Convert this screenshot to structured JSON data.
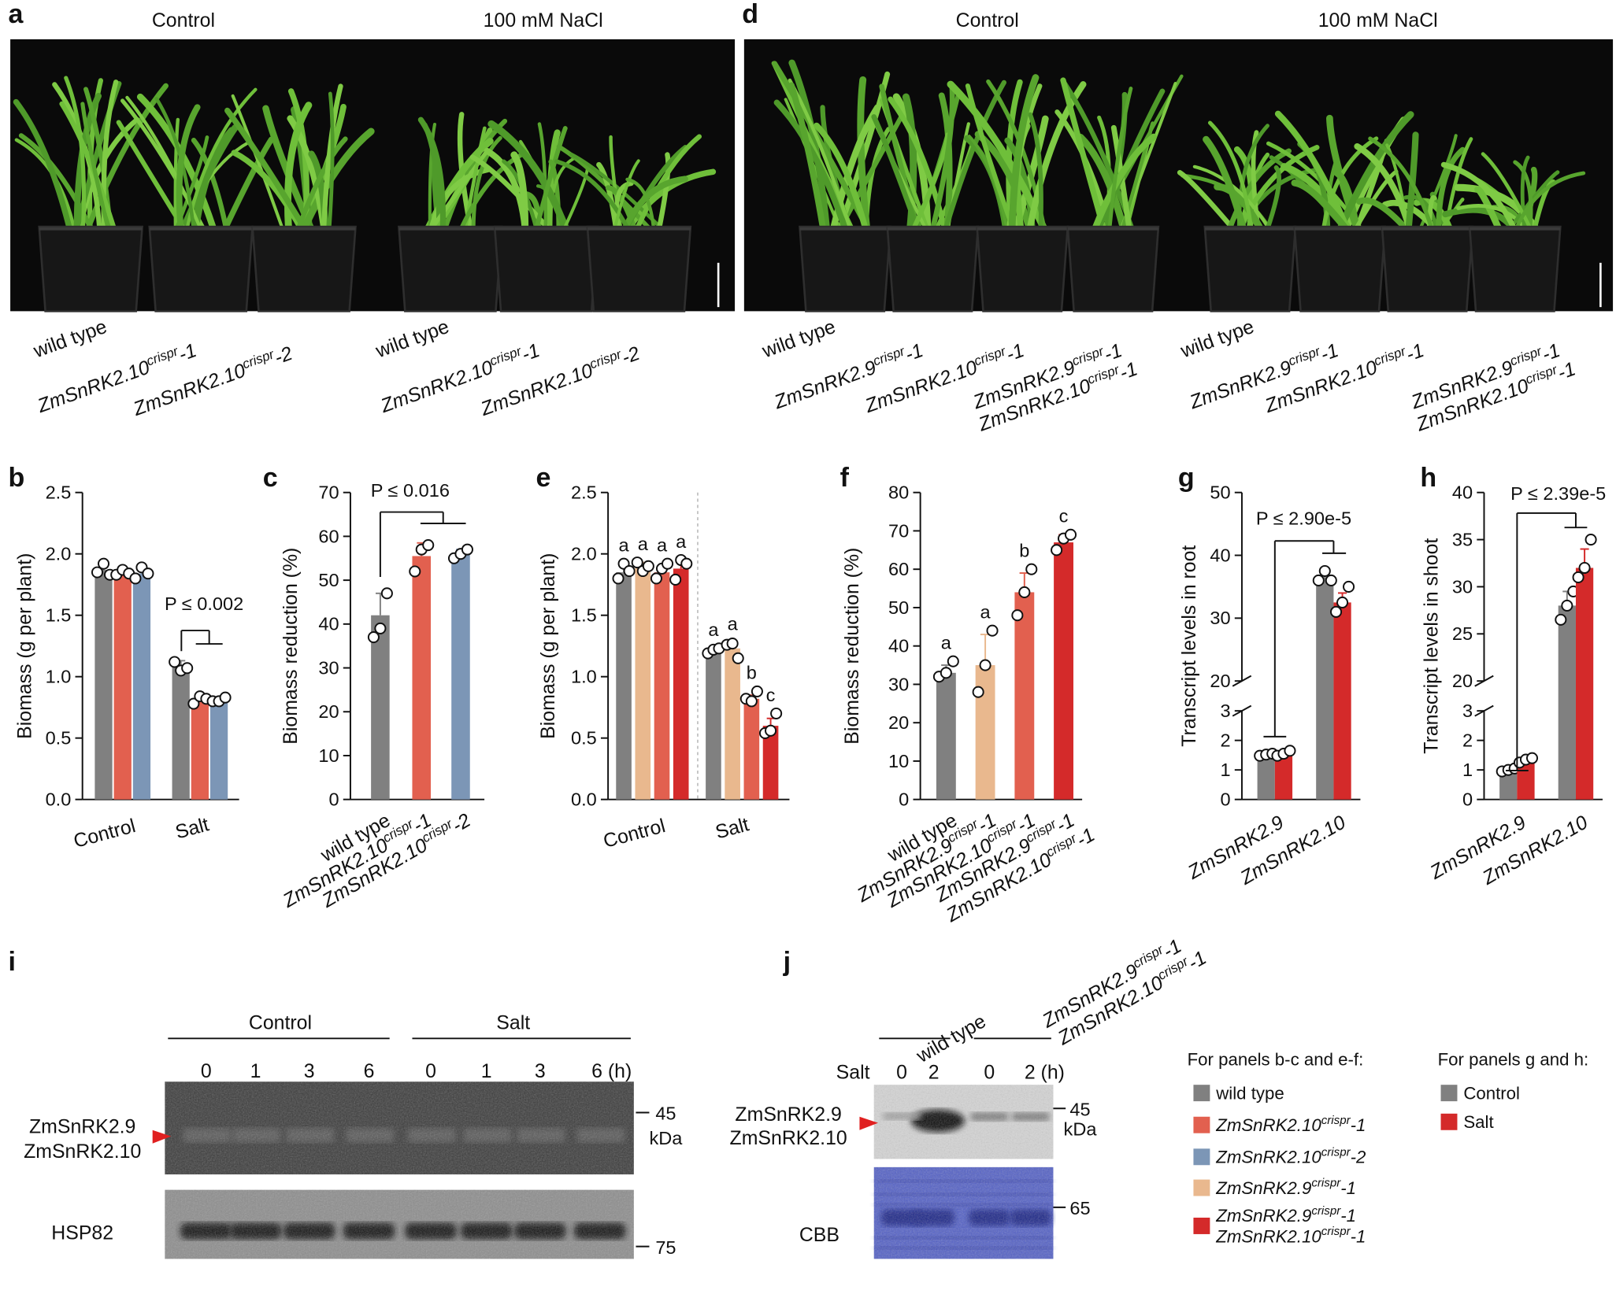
{
  "panel_letters": [
    "a",
    "b",
    "c",
    "d",
    "e",
    "f",
    "g",
    "h",
    "i",
    "j"
  ],
  "photos": [
    {
      "conditions": [
        "Control",
        "100 mM NaCl"
      ],
      "labels": [
        "wild type",
        {
          "text": "ZmSnRK2.10",
          "sup": "crispr",
          "suffix": "-1"
        },
        {
          "text": "ZmSnRK2.10",
          "sup": "crispr",
          "suffix": "-2"
        },
        "wild type",
        {
          "text": "ZmSnRK2.10",
          "sup": "crispr",
          "suffix": "-1"
        },
        {
          "text": "ZmSnRK2.10",
          "sup": "crispr",
          "suffix": "-2"
        }
      ]
    },
    {
      "conditions": [
        "Control",
        "100 mM NaCl"
      ],
      "labels": [
        "wild type",
        {
          "text": "ZmSnRK2.9",
          "sup": "crispr",
          "suffix": "-1"
        },
        {
          "text": "ZmSnRK2.10",
          "sup": "crispr",
          "suffix": "-1"
        },
        [
          {
            "text": "ZmSnRK2.9",
            "sup": "crispr",
            "suffix": "-1"
          },
          {
            "text": "ZmSnRK2.10",
            "sup": "crispr",
            "suffix": "-1"
          }
        ],
        "wild type",
        {
          "text": "ZmSnRK2.9",
          "sup": "crispr",
          "suffix": "-1"
        },
        {
          "text": "ZmSnRK2.10",
          "sup": "crispr",
          "suffix": "-1"
        },
        [
          {
            "text": "ZmSnRK2.9",
            "sup": "crispr",
            "suffix": "-1"
          },
          {
            "text": "ZmSnRK2.10",
            "sup": "crispr",
            "suffix": "-1"
          }
        ]
      ]
    }
  ],
  "chart_data": [
    {
      "type": "bar",
      "y_label": "Biomass (g per plant)",
      "categories": [
        "Control",
        "Salt"
      ],
      "ylim": [
        0,
        2.5
      ],
      "yticks": [
        {
          "value": 0,
          "label": "0.0"
        },
        0.5,
        {
          "value": 1,
          "label": "1.0"
        },
        1.5,
        {
          "value": 2,
          "label": "2.0"
        },
        2.5
      ],
      "series": [
        {
          "color": "#808080",
          "values": [
            1.87,
            1.08
          ],
          "errors": [
            0.03,
            0.05
          ],
          "points": [
            [
              1.85,
              1.92,
              1.83
            ],
            [
              1.12,
              1.05,
              1.07
            ]
          ]
        },
        {
          "color": "#e2604f",
          "values": [
            1.85,
            0.81
          ],
          "errors": [
            0.03,
            0.03
          ],
          "points": [
            [
              1.83,
              1.87,
              1.84
            ],
            [
              0.78,
              0.84,
              0.82
            ]
          ]
        },
        {
          "color": "#7c96b6",
          "values": [
            1.84,
            0.81
          ],
          "errors": [
            0.04,
            0.02
          ],
          "points": [
            [
              1.8,
              1.89,
              1.84
            ],
            [
              0.8,
              0.8,
              0.83
            ]
          ]
        }
      ],
      "annotation": "P ≤ 0.002"
    },
    {
      "type": "bar",
      "y_label": "Biomass reduction (%)",
      "categories": [
        "wild type",
        {
          "text": "ZmSnRK2.10",
          "sup": "crispr",
          "suffix": "-1"
        },
        {
          "text": "ZmSnRK2.10",
          "sup": "crispr",
          "suffix": "-2"
        }
      ],
      "colors": [
        "#808080",
        "#e2604f",
        "#7c96b6"
      ],
      "values": [
        42,
        55.5,
        56
      ],
      "errors": [
        5,
        3,
        1
      ],
      "points": [
        [
          37,
          39,
          47
        ],
        [
          52,
          57,
          58
        ],
        [
          55,
          56,
          57
        ]
      ],
      "ylim": [
        0,
        70
      ],
      "yticks": [
        0,
        10,
        20,
        30,
        40,
        50,
        60,
        70
      ],
      "annotation": "P ≤ 0.016"
    },
    {
      "type": "bar",
      "y_label": "Biomass (g per plant)",
      "categories": [
        "Control",
        "Salt"
      ],
      "divider": true,
      "ylim": [
        0,
        2.5
      ],
      "yticks": [
        {
          "value": 0,
          "label": "0.0"
        },
        0.5,
        {
          "value": 1,
          "label": "1.0"
        },
        1.5,
        {
          "value": 2,
          "label": "2.0"
        },
        2.5
      ],
      "series": [
        {
          "color": "#808080",
          "values": [
            1.85,
            1.2
          ],
          "errors": [
            0.05,
            0.03
          ],
          "points": [
            [
              1.8,
              1.92,
              1.86
            ],
            [
              1.19,
              1.22,
              1.23
            ]
          ],
          "letters": [
            "a",
            "a"
          ]
        },
        {
          "color": "#e9b88e",
          "values": [
            1.9,
            1.23
          ],
          "errors": [
            0.03,
            0.05
          ],
          "points": [
            [
              1.93,
              1.86,
              1.9
            ],
            [
              1.26,
              1.27,
              1.15
            ]
          ],
          "letters": [
            "a",
            "a"
          ]
        },
        {
          "color": "#e2604f",
          "values": [
            1.85,
            0.82
          ],
          "errors": [
            0.05,
            0.03
          ],
          "points": [
            [
              1.8,
              1.88,
              1.92
            ],
            [
              0.82,
              0.8,
              0.88
            ]
          ],
          "letters": [
            "a",
            "b"
          ]
        },
        {
          "color": "#d42a2a",
          "values": [
            1.88,
            0.6
          ],
          "errors": [
            0.06,
            0.06
          ],
          "points": [
            [
              1.79,
              1.95,
              1.92
            ],
            [
              0.54,
              0.56,
              0.7
            ]
          ],
          "letters": [
            "a",
            "c"
          ]
        }
      ]
    },
    {
      "type": "bar",
      "y_label": "Biomass reduction (%)",
      "categories": [
        "wild type",
        {
          "text": "ZmSnRK2.9",
          "sup": "crispr",
          "suffix": "-1"
        },
        {
          "text": "ZmSnRK2.10",
          "sup": "crispr",
          "suffix": "-1"
        },
        [
          {
            "text": "ZmSnRK2.9",
            "sup": "crispr",
            "suffix": "-1"
          },
          {
            "text": "ZmSnRK2.10",
            "sup": "crispr",
            "suffix": "-1"
          }
        ]
      ],
      "colors": [
        "#808080",
        "#e9b88e",
        "#e2604f",
        "#d42a2a"
      ],
      "values": [
        33,
        35,
        54,
        67
      ],
      "errors": [
        2,
        8,
        5,
        2
      ],
      "points": [
        [
          32,
          33,
          36
        ],
        [
          28,
          35,
          44
        ],
        [
          48,
          54,
          60
        ],
        [
          65,
          68,
          69
        ]
      ],
      "letters": [
        "a",
        "a",
        "b",
        "c"
      ],
      "ylim": [
        0,
        80
      ],
      "yticks": [
        0,
        10,
        20,
        30,
        40,
        50,
        60,
        70,
        80
      ]
    },
    {
      "type": "bar",
      "y_label": "Transcript levels in root",
      "categories": [
        {
          "text": "ZmSnRK2.9"
        },
        {
          "text": "ZmSnRK2.10"
        }
      ],
      "ylim": [
        0,
        50
      ],
      "ybreak": [
        3,
        20
      ],
      "yticks": [
        0,
        1,
        2,
        3,
        20,
        30,
        40,
        50
      ],
      "series": [
        {
          "color": "#808080",
          "values": [
            1.5,
            36.5
          ],
          "errors": [
            0.05,
            1
          ],
          "points": [
            [
              1.48,
              1.52,
              1.55
            ],
            [
              36,
              37.5,
              36
            ]
          ]
        },
        {
          "color": "#d42a2a",
          "values": [
            1.55,
            32.5
          ],
          "errors": [
            0.1,
            1.5
          ],
          "points": [
            [
              1.48,
              1.55,
              1.65
            ],
            [
              31,
              32.5,
              35
            ]
          ]
        }
      ],
      "annotation": "P ≤ 2.90e-5"
    },
    {
      "type": "bar",
      "y_label": "Transcript levels in shoot",
      "categories": [
        {
          "text": "ZmSnRK2.9"
        },
        {
          "text": "ZmSnRK2.10"
        }
      ],
      "ylim": [
        0,
        40
      ],
      "ybreak": [
        3,
        20
      ],
      "yticks": [
        0,
        1,
        2,
        3,
        20,
        25,
        30,
        35,
        40
      ],
      "series": [
        {
          "color": "#808080",
          "values": [
            1,
            28
          ],
          "errors": [
            0.05,
            1.5
          ],
          "points": [
            [
              0.95,
              1,
              1.05
            ],
            [
              26.5,
              28,
              29.5
            ]
          ]
        },
        {
          "color": "#d42a2a",
          "values": [
            1.3,
            32
          ],
          "errors": [
            0.08,
            2
          ],
          "points": [
            [
              1.25,
              1.35,
              1.4
            ],
            [
              31,
              32,
              35
            ]
          ]
        }
      ],
      "annotation": "P ≤ 2.39e-5"
    }
  ],
  "blots": [
    {
      "groups": [
        "Control",
        "Salt"
      ],
      "times": [
        "0",
        "1",
        "3",
        "6",
        "0",
        "1",
        "3",
        "6 (h)"
      ],
      "targets": [
        "ZmSnRK2.9",
        "ZmSnRK2.10"
      ],
      "markers": [
        "45",
        "kDa",
        "75"
      ],
      "loading": "HSP82"
    },
    {
      "genotypes": [
        "wild type",
        [
          {
            "text": "ZmSnRK2.9",
            "sup": "crispr",
            "suffix": "-1"
          },
          {
            "text": "ZmSnRK2.10",
            "sup": "crispr",
            "suffix": "-1"
          }
        ]
      ],
      "treatment": "Salt",
      "times": [
        "0",
        "2",
        "0",
        "2 (h)"
      ],
      "targets": [
        "ZmSnRK2.9",
        "ZmSnRK2.10"
      ],
      "markers": [
        "45",
        "kDa",
        "65"
      ],
      "loading": "CBB"
    }
  ],
  "legends": [
    {
      "title": "For panels b-c and e-f:",
      "items": [
        {
          "label": "wild type",
          "color": "#808080"
        },
        {
          "label": {
            "text": "ZmSnRK2.10",
            "sup": "crispr",
            "suffix": "-1"
          },
          "color": "#e2604f"
        },
        {
          "label": {
            "text": "ZmSnRK2.10",
            "sup": "crispr",
            "suffix": "-2"
          },
          "color": "#7c96b6"
        },
        {
          "label": {
            "text": "ZmSnRK2.9",
            "sup": "crispr",
            "suffix": "-1"
          },
          "color": "#e9b88e"
        },
        {
          "label": [
            {
              "text": "ZmSnRK2.9",
              "sup": "crispr",
              "suffix": "-1"
            },
            {
              "text": "ZmSnRK2.10",
              "sup": "crispr",
              "suffix": "-1"
            }
          ],
          "color": "#d42a2a"
        }
      ]
    },
    {
      "title": "For panels g and h:",
      "items": [
        {
          "label": "Control",
          "color": "#808080"
        },
        {
          "label": "Salt",
          "color": "#d42a2a"
        }
      ]
    }
  ]
}
